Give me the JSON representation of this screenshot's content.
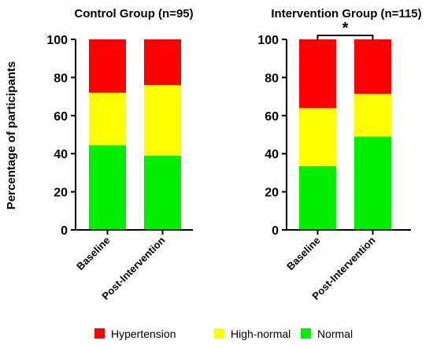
{
  "chart_data": [
    {
      "type": "stacked-bar",
      "title": "Control Group (n=95)",
      "ylabel": "Percentage of participants",
      "ylim": [
        0,
        100
      ],
      "yticks": [
        "0",
        "20",
        "40",
        "60",
        "80",
        "100"
      ],
      "categories": [
        "Baseline",
        "Post-Intervention"
      ],
      "series": [
        {
          "name": "Normal",
          "color": "#00ee00",
          "values": [
            44.5,
            39
          ]
        },
        {
          "name": "High-normal",
          "color": "#ffff00",
          "values": [
            27.5,
            37
          ]
        },
        {
          "name": "Hypertension",
          "color": "#ff0000",
          "values": [
            28,
            24
          ]
        }
      ],
      "annotation": ""
    },
    {
      "type": "stacked-bar",
      "title": "Intervention Group (n=115)",
      "ylim": [
        0,
        100
      ],
      "yticks": [
        "0",
        "20",
        "40",
        "60",
        "80",
        "100"
      ],
      "categories": [
        "Baseline",
        "Post-Intervention"
      ],
      "series": [
        {
          "name": "Normal",
          "color": "#00ee00",
          "values": [
            33.5,
            49
          ]
        },
        {
          "name": "High-normal",
          "color": "#ffff00",
          "values": [
            30.5,
            22.5
          ]
        },
        {
          "name": "Hypertension",
          "color": "#ff0000",
          "values": [
            36,
            28.5
          ]
        }
      ],
      "annotation": "*"
    }
  ],
  "legend": [
    {
      "label": "Hypertension",
      "color": "#ff0000"
    },
    {
      "label": "High-normal",
      "color": "#ffff00"
    },
    {
      "label": "Normal",
      "color": "#00ee00"
    }
  ]
}
